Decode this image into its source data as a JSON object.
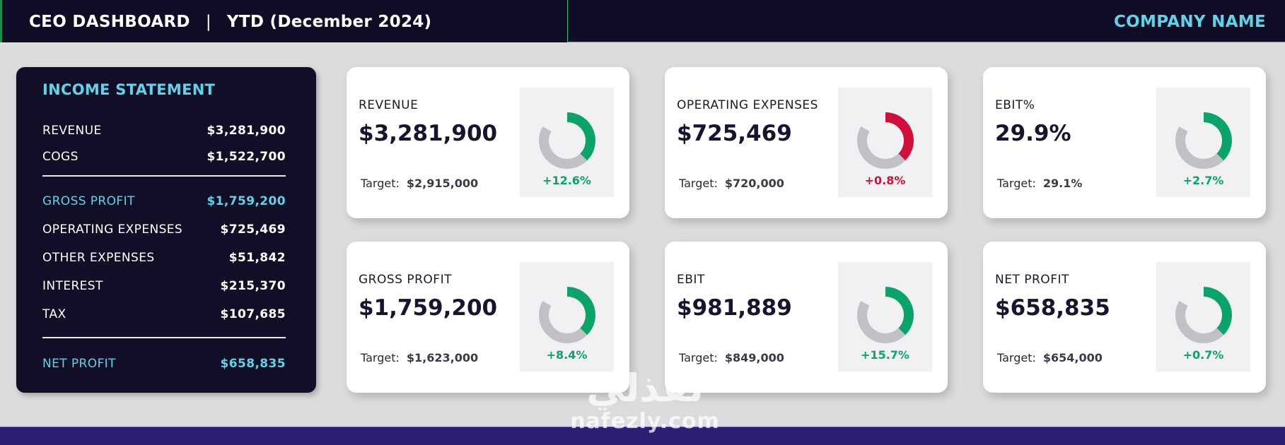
{
  "header": {
    "dashboard_title": "CEO DASHBOARD",
    "separator": "|",
    "period": "YTD (December 2024)",
    "company": "COMPANY NAME"
  },
  "income_statement": {
    "heading": "INCOME STATEMENT",
    "rows": [
      {
        "label": "REVENUE",
        "value": "$3,281,900"
      },
      {
        "label": "COGS",
        "value": "$1,522,700"
      },
      {
        "label": "GROSS PROFIT",
        "value": "$1,759,200"
      },
      {
        "label": "OPERATING EXPENSES",
        "value": "$725,469"
      },
      {
        "label": "OTHER EXPENSES",
        "value": "$51,842"
      },
      {
        "label": "INTEREST",
        "value": "$215,370"
      },
      {
        "label": "TAX",
        "value": "$107,685"
      },
      {
        "label": "NET PROFIT",
        "value": "$658,835"
      }
    ]
  },
  "kpi_cards": [
    {
      "label": "REVENUE",
      "value": "$3,281,900",
      "target_label": "Target:",
      "target": "$2,915,000",
      "variance": "+12.6%",
      "gauge_fill": 0.45,
      "status_color": "#0aa36a"
    },
    {
      "label": "OPERATING EXPENSES",
      "value": "$725,469",
      "target_label": "Target:",
      "target": "$720,000",
      "variance": "+0.8%",
      "gauge_fill": 0.45,
      "status_color": "#d0103a"
    },
    {
      "label": "EBIT%",
      "value": "29.9%",
      "target_label": "Target:",
      "target": "29.1%",
      "variance": "+2.7%",
      "gauge_fill": 0.45,
      "status_color": "#0aa36a"
    },
    {
      "label": "GROSS PROFIT",
      "value": "$1,759,200",
      "target_label": "Target:",
      "target": "$1,623,000",
      "variance": "+8.4%",
      "gauge_fill": 0.45,
      "status_color": "#0aa36a"
    },
    {
      "label": "EBIT",
      "value": "$981,889",
      "target_label": "Target:",
      "target": "$849,000",
      "variance": "+15.7%",
      "gauge_fill": 0.45,
      "status_color": "#0aa36a"
    },
    {
      "label": "NET PROFIT",
      "value": "$658,835",
      "target_label": "Target:",
      "target": "$654,000",
      "variance": "+0.7%",
      "gauge_fill": 0.45,
      "status_color": "#0aa36a"
    }
  ],
  "colors": {
    "navy": "#110e27",
    "cyan": "#5fd4e8",
    "positive": "#0aa36a",
    "negative": "#d0103a",
    "gauge_track": "#bfc1c6"
  },
  "watermark": {
    "arabic": "نفذلي",
    "latin": "nafezly.com"
  }
}
